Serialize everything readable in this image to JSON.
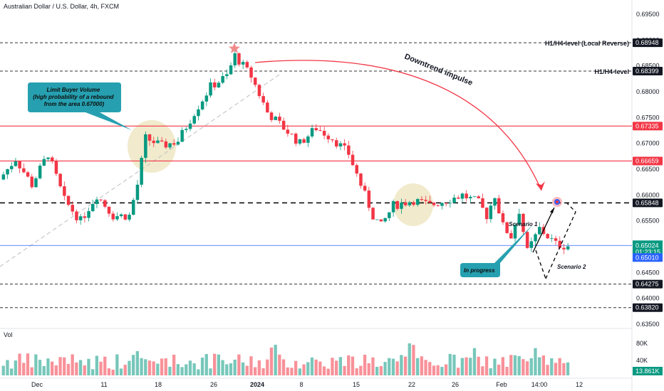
{
  "header": {
    "title": "Australian Dollar / U.S. Dollar, 4h, FXCM"
  },
  "chart_data": {
    "type": "candlestick",
    "title": "Australian Dollar / U.S. Dollar, 4h, FXCM",
    "ylim": [
      0.635,
      0.695
    ],
    "y_ticks": [
      "0.69500",
      "0.69000",
      "0.68500",
      "0.68000",
      "0.67500",
      "0.67000",
      "0.66500",
      "0.66000",
      "0.65500",
      "0.64500",
      "0.64000",
      "0.63500"
    ],
    "x_ticks": [
      "Dec",
      "11",
      "18",
      "26",
      "2024",
      "8",
      "15",
      "22",
      "26",
      "Feb",
      "14:00",
      "12"
    ],
    "price_path": [
      [
        0,
        0.663
      ],
      [
        4,
        0.667
      ],
      [
        8,
        0.662
      ],
      [
        12,
        0.668
      ],
      [
        16,
        0.659
      ],
      [
        20,
        0.655
      ],
      [
        24,
        0.66
      ],
      [
        28,
        0.656
      ],
      [
        32,
        0.656
      ],
      [
        34,
        0.662
      ],
      [
        36,
        0.671
      ],
      [
        40,
        0.6695
      ],
      [
        44,
        0.6705
      ],
      [
        48,
        0.676
      ],
      [
        52,
        0.681
      ],
      [
        56,
        0.683
      ],
      [
        58,
        0.687
      ],
      [
        62,
        0.683
      ],
      [
        66,
        0.676
      ],
      [
        70,
        0.673
      ],
      [
        74,
        0.67
      ],
      [
        78,
        0.673
      ],
      [
        82,
        0.671
      ],
      [
        86,
        0.668
      ],
      [
        88,
        0.664
      ],
      [
        92,
        0.656
      ],
      [
        94,
        0.654
      ],
      [
        97,
        0.658
      ],
      [
        102,
        0.659
      ],
      [
        106,
        0.658
      ],
      [
        110,
        0.659
      ],
      [
        114,
        0.66
      ],
      [
        118,
        0.6585
      ],
      [
        120,
        0.656
      ],
      [
        122,
        0.66
      ],
      [
        124,
        0.654
      ],
      [
        126,
        0.652
      ],
      [
        128,
        0.657
      ],
      [
        130,
        0.649
      ],
      [
        133,
        0.6535
      ],
      [
        135,
        0.652
      ],
      [
        137,
        0.6505
      ],
      [
        139,
        0.6502
      ]
    ],
    "levels": [
      {
        "price": 0.68948,
        "label": "0.68948",
        "annotation": "H1/H4-level (Local Reverse)",
        "style": "dashed",
        "color": "#333333"
      },
      {
        "price": 0.68399,
        "label": "0.68399",
        "annotation": "H1/H4-level",
        "style": "dashed",
        "color": "#333333"
      },
      {
        "price": 0.67335,
        "label": "0.67335",
        "annotation": "",
        "style": "solid",
        "color": "#f23645"
      },
      {
        "price": 0.66659,
        "label": "0.66659",
        "annotation": "",
        "style": "solid",
        "color": "#f23645"
      },
      {
        "price": 0.65848,
        "label": "0.65848",
        "annotation": "",
        "style": "bold-dashed",
        "color": "#000000"
      },
      {
        "price": 0.64275,
        "label": "0.64275",
        "annotation": "",
        "style": "dashed",
        "color": "#333333"
      },
      {
        "price": 0.6382,
        "label": "0.63820",
        "annotation": "",
        "style": "dashed",
        "color": "#333333"
      }
    ],
    "current_price": {
      "label": "0.65024",
      "countdown": "01:23:15",
      "price": 0.65024,
      "color": "#2962ff"
    },
    "bid_price": {
      "label": "0.65010",
      "price": 0.6501
    },
    "annotations": {
      "limit_buyer": "Limit Buyer Volume\n(high probability of a rebound\nfrom the area 0.67000)",
      "downtrend": "Downtrend impulse",
      "in_progress": "In progress",
      "scenario1": "Scenario 1",
      "scenario2": "Scenario 2"
    },
    "volume": {
      "label": "Vol",
      "y_ticks": [
        "80K",
        "40K"
      ],
      "current_label": "13.861K",
      "max": 100000
    }
  },
  "colors": {
    "bull": "#089981",
    "bear": "#f23645",
    "callout": "#26a0b0",
    "highlight": "#e8dcaa",
    "current_price": "#2962ff"
  }
}
